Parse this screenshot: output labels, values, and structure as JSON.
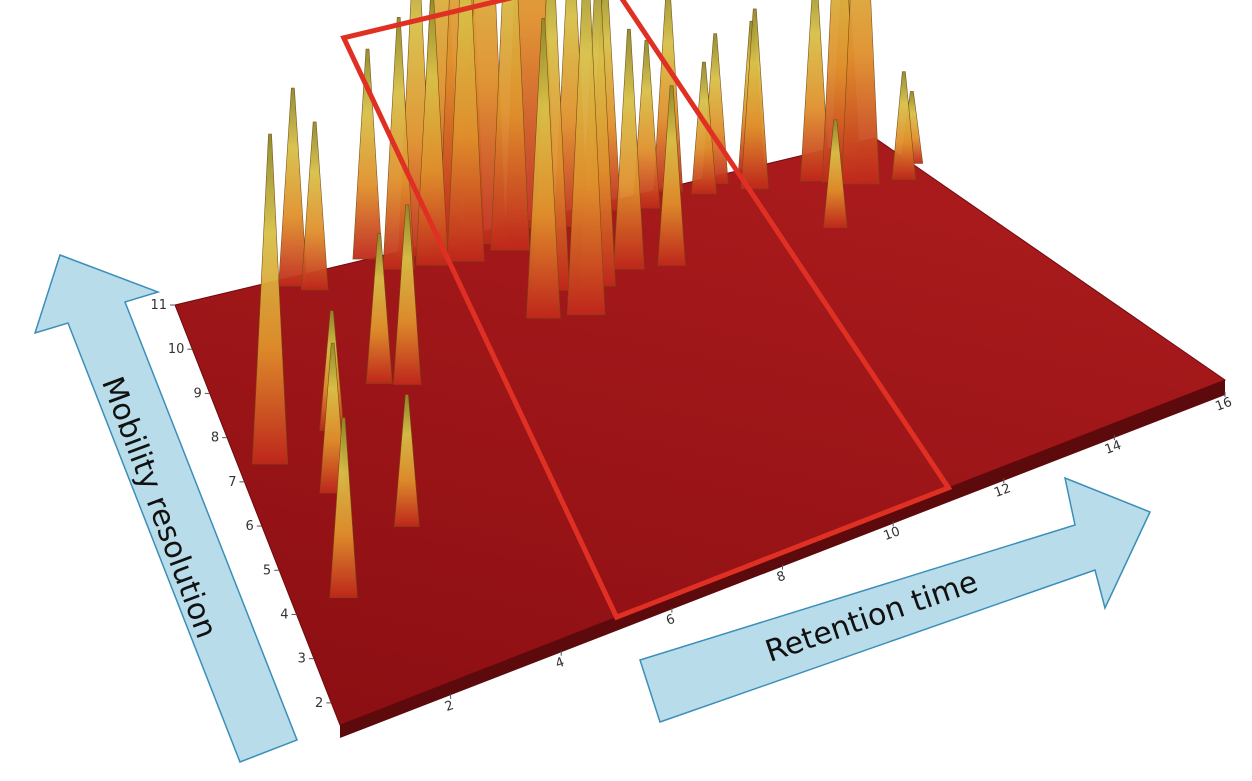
{
  "chart_data": {
    "type": "surface-3d",
    "title": "",
    "xlabel": "Retention time",
    "ylabel": "Mobility resolution",
    "x_ticks": [
      "2",
      "4",
      "6",
      "8",
      "10",
      "12",
      "14",
      "16"
    ],
    "y_ticks": [
      "2",
      "3",
      "4",
      "5",
      "6",
      "7",
      "8",
      "9",
      "10",
      "11"
    ],
    "xlim": [
      0,
      16
    ],
    "ylim": [
      1.5,
      11
    ],
    "zlim": [
      0,
      1
    ],
    "highlight_region": {
      "x_range": [
        5,
        11
      ],
      "y_range": [
        1.5,
        11
      ]
    },
    "peaks": [
      {
        "x": 0.6,
        "y": 7.2,
        "h": 0.55
      },
      {
        "x": 0.9,
        "y": 4.0,
        "h": 0.3
      },
      {
        "x": 1.5,
        "y": 6.2,
        "h": 0.25
      },
      {
        "x": 2.0,
        "y": 7.5,
        "h": 0.2
      },
      {
        "x": 2.5,
        "y": 5.0,
        "h": 0.22
      },
      {
        "x": 2.6,
        "y": 10.8,
        "h": 0.33
      },
      {
        "x": 3.0,
        "y": 10.6,
        "h": 0.28
      },
      {
        "x": 3.3,
        "y": 8.2,
        "h": 0.25
      },
      {
        "x": 3.8,
        "y": 8.0,
        "h": 0.3
      },
      {
        "x": 4.4,
        "y": 11.0,
        "h": 0.35
      },
      {
        "x": 4.9,
        "y": 10.6,
        "h": 0.42
      },
      {
        "x": 5.4,
        "y": 10.8,
        "h": 0.55
      },
      {
        "x": 5.6,
        "y": 10.5,
        "h": 0.45
      },
      {
        "x": 6.0,
        "y": 10.9,
        "h": 0.72
      },
      {
        "x": 6.3,
        "y": 10.4,
        "h": 0.6
      },
      {
        "x": 6.5,
        "y": 10.9,
        "h": 0.85
      },
      {
        "x": 6.9,
        "y": 10.7,
        "h": 0.78
      },
      {
        "x": 7.3,
        "y": 10.4,
        "h": 0.65
      },
      {
        "x": 7.0,
        "y": 8.6,
        "h": 0.5
      },
      {
        "x": 7.5,
        "y": 9.2,
        "h": 0.6
      },
      {
        "x": 8.0,
        "y": 10.8,
        "h": 1.0
      },
      {
        "x": 7.8,
        "y": 8.4,
        "h": 0.62
      },
      {
        "x": 8.4,
        "y": 9.0,
        "h": 0.55
      },
      {
        "x": 8.8,
        "y": 10.6,
        "h": 0.5
      },
      {
        "x": 9.2,
        "y": 9.2,
        "h": 0.4
      },
      {
        "x": 9.7,
        "y": 10.8,
        "h": 0.4
      },
      {
        "x": 10.0,
        "y": 9.0,
        "h": 0.3
      },
      {
        "x": 10.5,
        "y": 10.6,
        "h": 0.28
      },
      {
        "x": 11.2,
        "y": 10.9,
        "h": 0.35
      },
      {
        "x": 11.8,
        "y": 10.6,
        "h": 0.22
      },
      {
        "x": 12.2,
        "y": 10.8,
        "h": 0.25
      },
      {
        "x": 12.8,
        "y": 10.4,
        "h": 0.3
      },
      {
        "x": 13.1,
        "y": 10.9,
        "h": 0.25
      },
      {
        "x": 13.4,
        "y": 8.8,
        "h": 0.18
      },
      {
        "x": 14.0,
        "y": 10.2,
        "h": 0.35
      },
      {
        "x": 14.4,
        "y": 10.0,
        "h": 0.55
      },
      {
        "x": 14.7,
        "y": 9.8,
        "h": 0.62
      },
      {
        "x": 15.0,
        "y": 10.6,
        "h": 0.35
      },
      {
        "x": 15.5,
        "y": 9.6,
        "h": 0.18
      },
      {
        "x": 16.0,
        "y": 10.0,
        "h": 0.12
      }
    ]
  }
}
